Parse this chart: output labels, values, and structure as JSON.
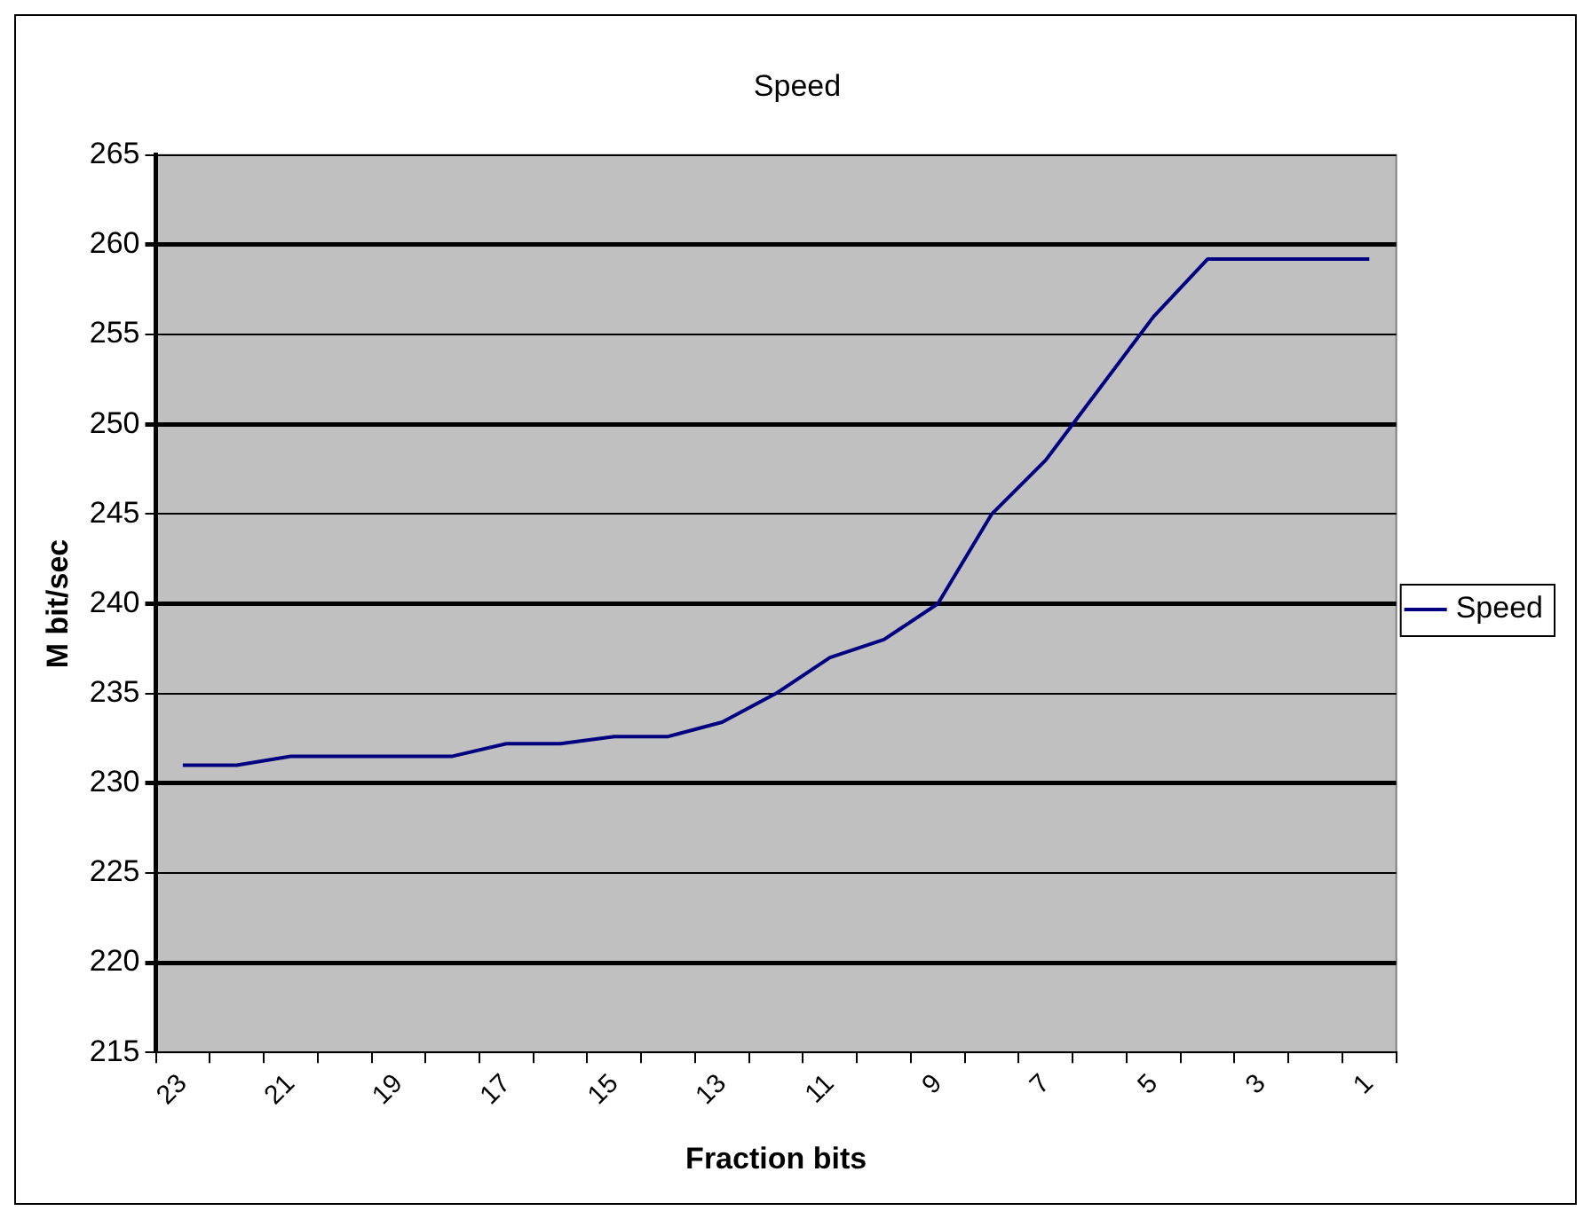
{
  "chart_data": {
    "type": "line",
    "title": "Speed",
    "xlabel": "Fraction bits",
    "ylabel": "M bit/sec",
    "categories": [
      "23",
      null,
      "21",
      null,
      "19",
      null,
      "17",
      null,
      "15",
      null,
      "13",
      null,
      "11",
      null,
      "9",
      null,
      "7",
      null,
      "5",
      null,
      "3",
      null,
      "1"
    ],
    "series": [
      {
        "name": "Speed",
        "color": "#000080",
        "values": [
          231,
          231,
          231.5,
          231.5,
          231.5,
          231.5,
          232.2,
          232.2,
          232.6,
          232.6,
          233.4,
          235,
          237,
          238,
          240,
          245,
          248,
          252,
          256,
          259.2,
          259.2,
          259.2,
          259.2
        ]
      }
    ],
    "ylim": [
      215,
      265
    ],
    "yticks": [
      215,
      220,
      225,
      230,
      235,
      240,
      245,
      250,
      255,
      260,
      265
    ],
    "grid": "y",
    "legend": "right",
    "marker": "none"
  }
}
